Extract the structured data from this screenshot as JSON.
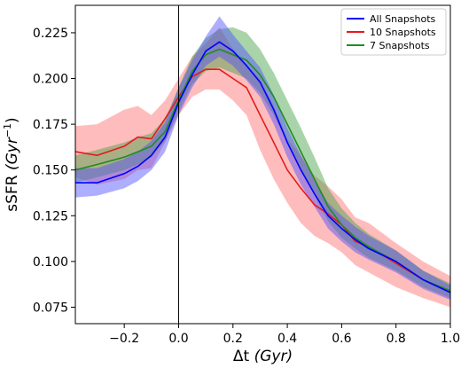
{
  "chart_data": {
    "type": "line",
    "xlabel": "Δt (Gyr)",
    "xlabel_parts": {
      "prefix": "Δt ",
      "italic": "(Gyr)"
    },
    "ylabel": "sSFR (Gyr⁻¹)",
    "ylabel_parts": {
      "prefix": "sSFR ",
      "italic": "(Gyr",
      "sup": "−1",
      "suffix": ")"
    },
    "xlim": [
      -0.38,
      1.0
    ],
    "ylim": [
      0.066,
      0.24
    ],
    "xticks": [
      -0.2,
      0.0,
      0.2,
      0.4,
      0.6,
      0.8,
      1.0
    ],
    "xtick_labels": [
      "−0.2",
      "0.0",
      "0.2",
      "0.4",
      "0.6",
      "0.8",
      "1.0"
    ],
    "yticks": [
      0.075,
      0.1,
      0.125,
      0.15,
      0.175,
      0.2,
      0.225
    ],
    "ytick_labels": [
      "0.075",
      "0.100",
      "0.125",
      "0.150",
      "0.175",
      "0.200",
      "0.225"
    ],
    "vline_x": 0.0,
    "grid": false,
    "legend_position": "top-right",
    "x": [
      -0.38,
      -0.3,
      -0.2,
      -0.15,
      -0.1,
      -0.05,
      0.0,
      0.05,
      0.1,
      0.15,
      0.2,
      0.25,
      0.3,
      0.35,
      0.4,
      0.45,
      0.5,
      0.55,
      0.6,
      0.65,
      0.7,
      0.8,
      0.9,
      1.0
    ],
    "series": [
      {
        "name": "All Snapshots",
        "color": "#0000ff",
        "band_color": "#4b4bff",
        "values": [
          0.143,
          0.143,
          0.148,
          0.152,
          0.158,
          0.168,
          0.187,
          0.202,
          0.215,
          0.22,
          0.215,
          0.207,
          0.198,
          0.183,
          0.165,
          0.15,
          0.137,
          0.125,
          0.118,
          0.112,
          0.107,
          0.1,
          0.09,
          0.083
        ],
        "lower": [
          0.135,
          0.136,
          0.14,
          0.144,
          0.15,
          0.16,
          0.18,
          0.195,
          0.207,
          0.212,
          0.207,
          0.199,
          0.19,
          0.175,
          0.157,
          0.142,
          0.13,
          0.118,
          0.111,
          0.105,
          0.101,
          0.094,
          0.085,
          0.079
        ],
        "upper": [
          0.151,
          0.151,
          0.156,
          0.16,
          0.166,
          0.176,
          0.195,
          0.21,
          0.223,
          0.234,
          0.224,
          0.215,
          0.206,
          0.191,
          0.173,
          0.158,
          0.145,
          0.132,
          0.125,
          0.119,
          0.114,
          0.106,
          0.095,
          0.087
        ]
      },
      {
        "name": "10 Snapshots",
        "color": "#e41a1c",
        "band_color": "#ff6b6b",
        "values": [
          0.16,
          0.158,
          0.163,
          0.168,
          0.167,
          0.178,
          0.19,
          0.201,
          0.205,
          0.205,
          0.2,
          0.195,
          0.18,
          0.165,
          0.15,
          0.14,
          0.131,
          0.126,
          0.12,
          0.111,
          0.108,
          0.099,
          0.09,
          0.083
        ],
        "lower": [
          0.146,
          0.142,
          0.145,
          0.15,
          0.151,
          0.165,
          0.18,
          0.19,
          0.194,
          0.194,
          0.188,
          0.18,
          0.161,
          0.145,
          0.132,
          0.121,
          0.114,
          0.11,
          0.105,
          0.098,
          0.094,
          0.086,
          0.08,
          0.075
        ],
        "upper": [
          0.174,
          0.175,
          0.183,
          0.185,
          0.18,
          0.188,
          0.2,
          0.212,
          0.219,
          0.228,
          0.216,
          0.208,
          0.2,
          0.185,
          0.167,
          0.158,
          0.147,
          0.141,
          0.134,
          0.124,
          0.121,
          0.11,
          0.1,
          0.092
        ]
      },
      {
        "name": "7 Snapshots",
        "color": "#228b22",
        "band_color": "#40a040",
        "values": [
          0.15,
          0.153,
          0.157,
          0.16,
          0.163,
          0.171,
          0.188,
          0.204,
          0.213,
          0.216,
          0.213,
          0.21,
          0.202,
          0.19,
          0.175,
          0.16,
          0.145,
          0.13,
          0.12,
          0.113,
          0.108,
          0.1,
          0.09,
          0.084
        ],
        "lower": [
          0.143,
          0.146,
          0.15,
          0.153,
          0.157,
          0.166,
          0.182,
          0.197,
          0.204,
          0.206,
          0.203,
          0.2,
          0.192,
          0.18,
          0.165,
          0.15,
          0.136,
          0.122,
          0.113,
          0.107,
          0.102,
          0.095,
          0.086,
          0.08
        ],
        "upper": [
          0.158,
          0.161,
          0.165,
          0.168,
          0.17,
          0.178,
          0.195,
          0.212,
          0.222,
          0.227,
          0.228,
          0.225,
          0.216,
          0.203,
          0.188,
          0.173,
          0.157,
          0.14,
          0.129,
          0.121,
          0.115,
          0.106,
          0.095,
          0.088
        ]
      }
    ]
  }
}
